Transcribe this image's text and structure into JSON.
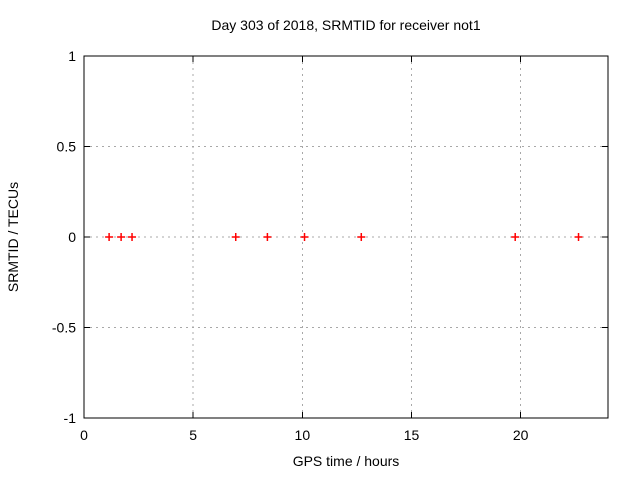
{
  "chart_data": {
    "type": "scatter",
    "title": "Day 303 of 2018, SRMTID for receiver not1",
    "xlabel": "GPS time / hours",
    "ylabel": "SRMTID / TECUs",
    "xlim": [
      0,
      24
    ],
    "ylim": [
      -1,
      1
    ],
    "xticks": [
      0,
      5,
      10,
      15,
      20
    ],
    "xtick_labels": [
      "0",
      "5",
      "10",
      "15",
      "20"
    ],
    "yticks": [
      1,
      0.5,
      0,
      -0.5,
      -1
    ],
    "ytick_labels": [
      "1",
      "0.5",
      "0",
      "-0.5",
      "-1"
    ],
    "grid": true,
    "legend": "none",
    "series": [
      {
        "name": "SRMTID",
        "marker": "plus",
        "color": "#ff0000",
        "points": [
          {
            "x": 1.15,
            "y": 0
          },
          {
            "x": 1.7,
            "y": 0
          },
          {
            "x": 2.2,
            "y": 0
          },
          {
            "x": 6.95,
            "y": 0
          },
          {
            "x": 8.4,
            "y": 0
          },
          {
            "x": 10.1,
            "y": 0
          },
          {
            "x": 12.7,
            "y": 0
          },
          {
            "x": 19.75,
            "y": 0
          },
          {
            "x": 22.65,
            "y": 0
          }
        ]
      }
    ],
    "colors": {
      "background": "#ffffff",
      "border": "#000000",
      "grid": "#a8a8a8",
      "text": "#000000",
      "marker": "#ff0000"
    }
  }
}
